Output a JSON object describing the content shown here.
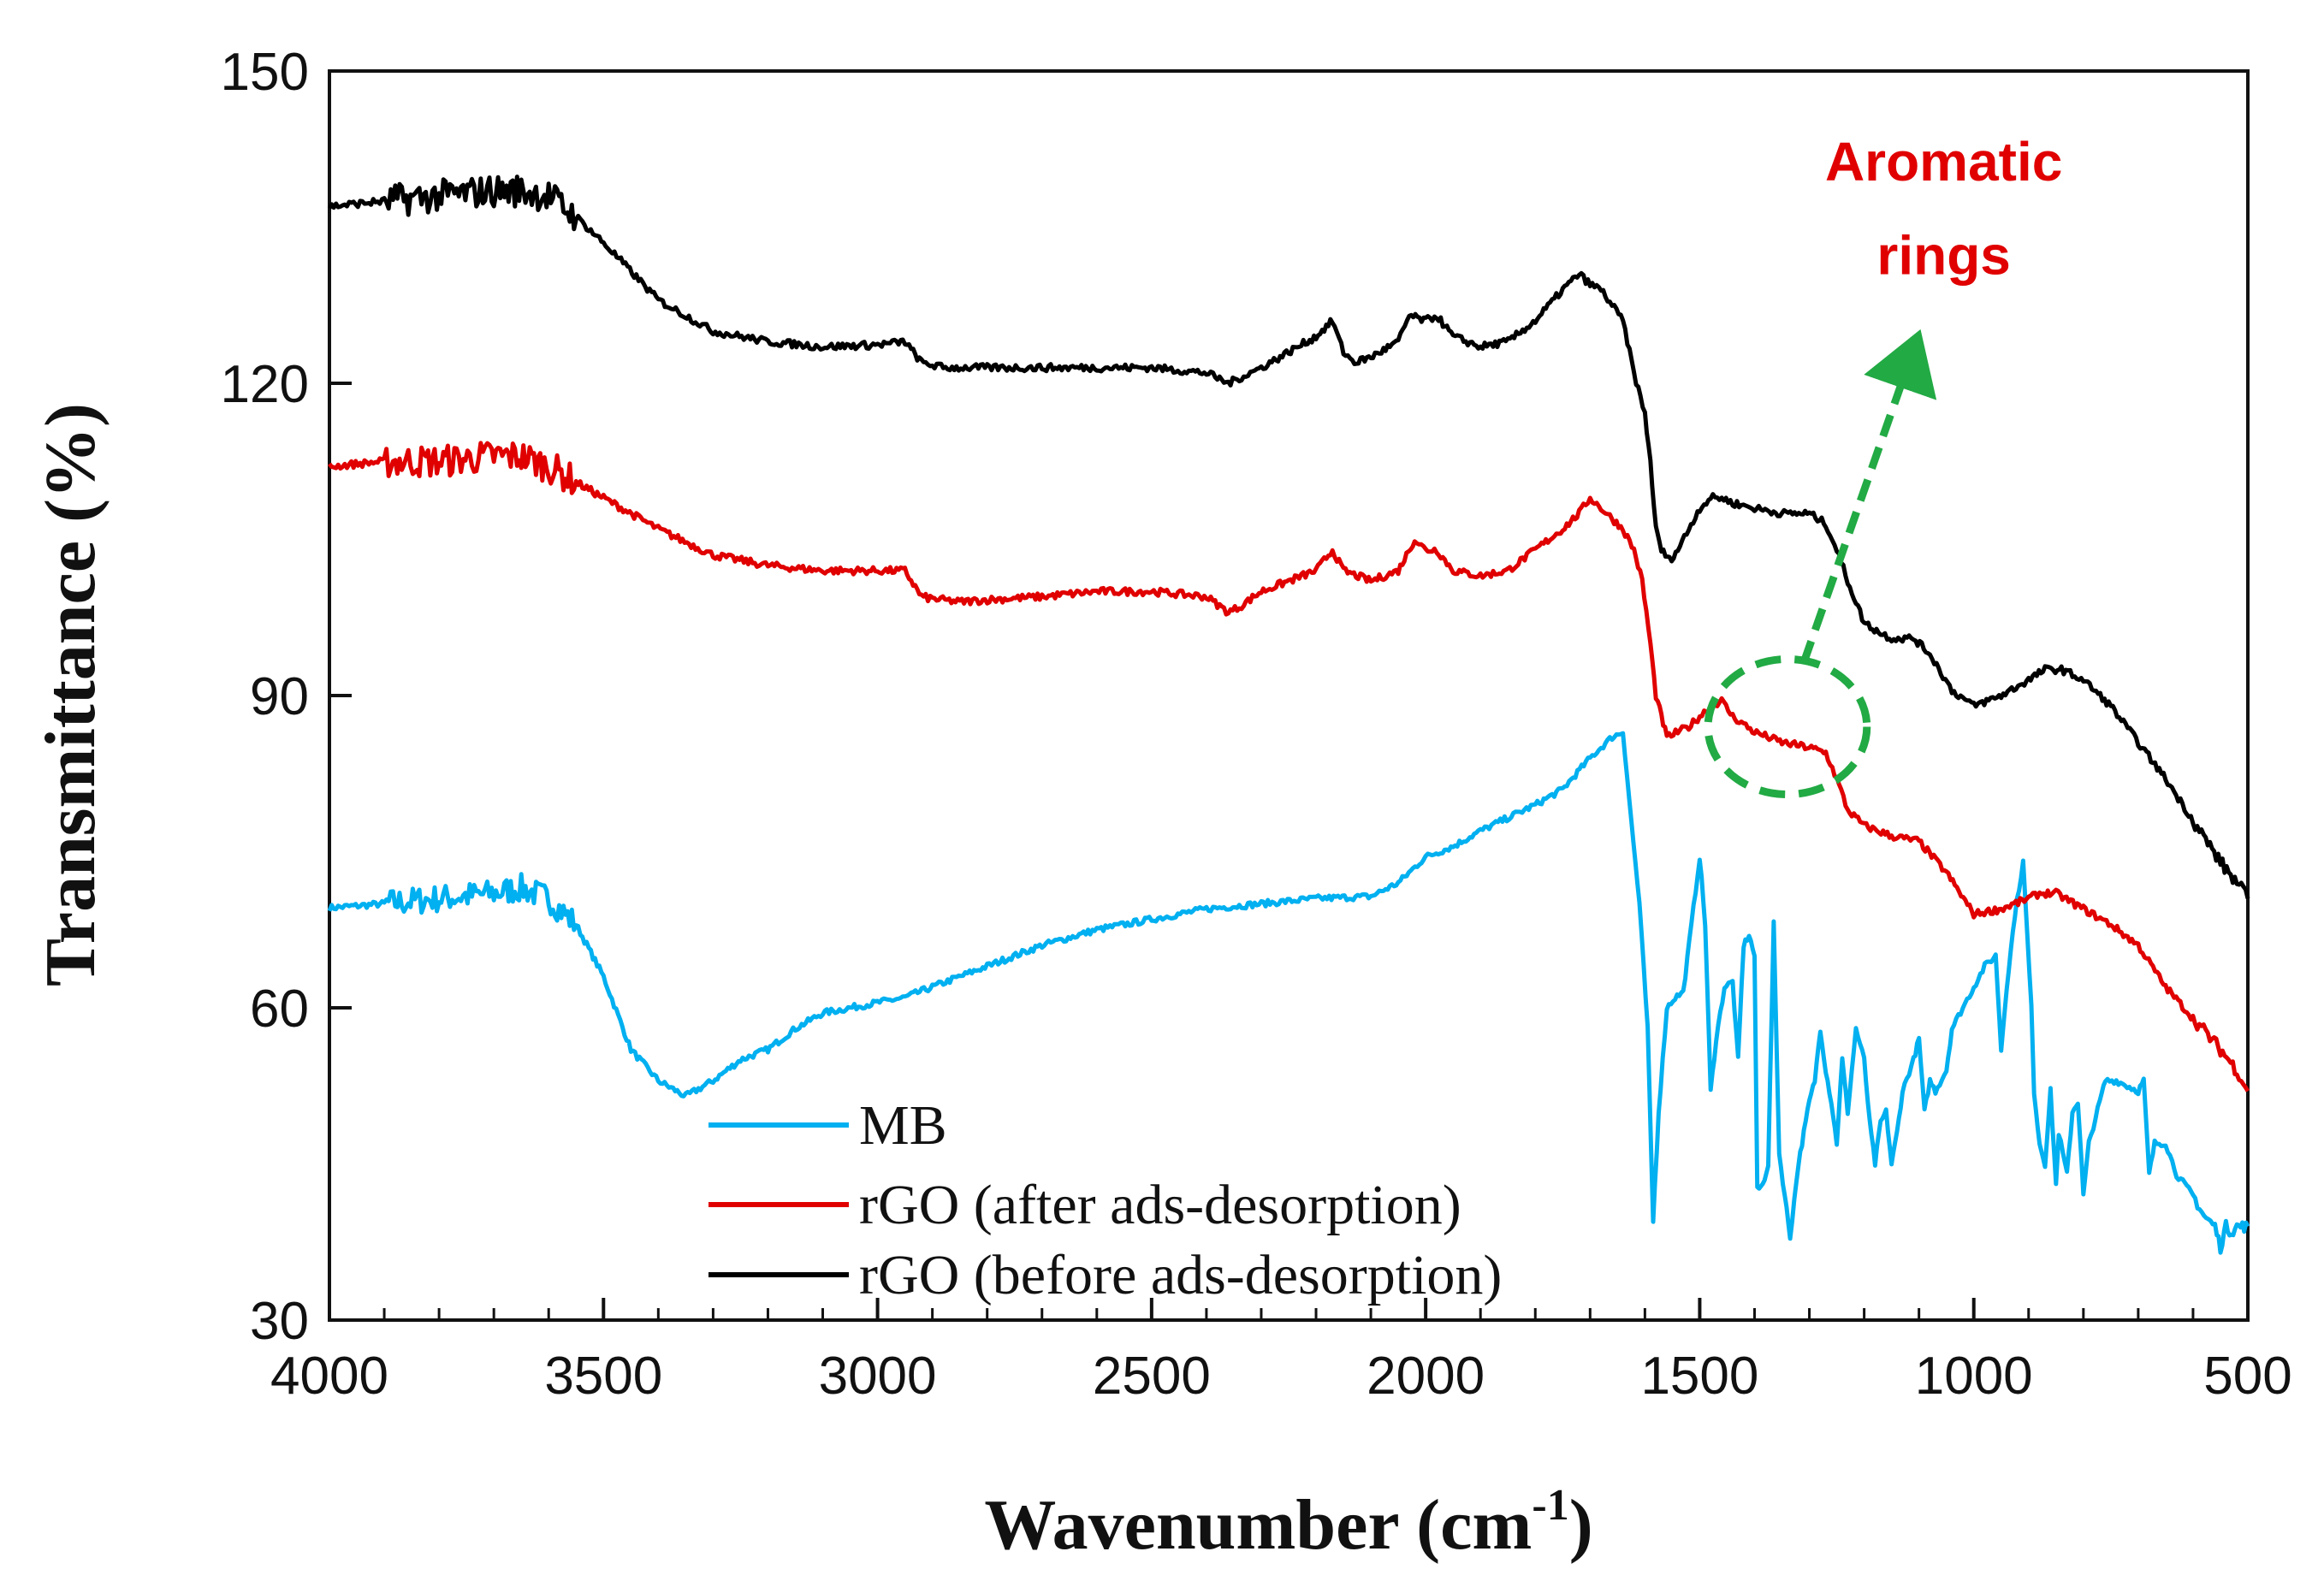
{
  "chart_data": {
    "type": "line",
    "title": "",
    "xlabel": "Wavenumber (cm",
    "xlabel_sup": "-1",
    "xlabel_close": ")",
    "ylabel": "Transmittance (%)",
    "xlim": [
      4000,
      500
    ],
    "ylim": [
      30,
      150
    ],
    "xticks": [
      4000,
      3500,
      3000,
      2500,
      2000,
      1500,
      1000,
      500
    ],
    "yticks": [
      30,
      60,
      90,
      120,
      150
    ],
    "x_minor_step": 100,
    "grid": false,
    "legend_position": "bottom-center",
    "series": [
      {
        "name": "MB",
        "color": "#00B0F0",
        "noise": 0.3,
        "points": [
          [
            4000,
            69.6
          ],
          [
            3900,
            70
          ],
          [
            3800,
            70.5
          ],
          [
            3700,
            71
          ],
          [
            3650,
            71.5
          ],
          [
            3600,
            70.5
          ],
          [
            3550,
            68
          ],
          [
            3500,
            63
          ],
          [
            3450,
            56
          ],
          [
            3400,
            53
          ],
          [
            3350,
            51.5
          ],
          [
            3300,
            53
          ],
          [
            3250,
            55
          ],
          [
            3200,
            56
          ],
          [
            3150,
            58
          ],
          [
            3100,
            59.5
          ],
          [
            3050,
            60
          ],
          [
            3000,
            60.5
          ],
          [
            2950,
            61
          ],
          [
            2900,
            62
          ],
          [
            2800,
            64
          ],
          [
            2700,
            66
          ],
          [
            2600,
            67.5
          ],
          [
            2500,
            68.5
          ],
          [
            2400,
            69.5
          ],
          [
            2300,
            70
          ],
          [
            2200,
            70.5
          ],
          [
            2100,
            70.7
          ],
          [
            2050,
            72
          ],
          [
            2000,
            74.5
          ],
          [
            1950,
            75.5
          ],
          [
            1900,
            77
          ],
          [
            1800,
            79.5
          ],
          [
            1750,
            81
          ],
          [
            1700,
            84
          ],
          [
            1660,
            86
          ],
          [
            1640,
            86.5
          ],
          [
            1625,
            78
          ],
          [
            1610,
            70
          ],
          [
            1595,
            58
          ],
          [
            1585,
            39.5
          ],
          [
            1575,
            50
          ],
          [
            1560,
            60
          ],
          [
            1545,
            61
          ],
          [
            1530,
            61.5
          ],
          [
            1515,
            68
          ],
          [
            1500,
            74.5
          ],
          [
            1490,
            68
          ],
          [
            1480,
            52
          ],
          [
            1470,
            57
          ],
          [
            1455,
            62
          ],
          [
            1440,
            62.5
          ],
          [
            1430,
            55
          ],
          [
            1420,
            66
          ],
          [
            1410,
            67
          ],
          [
            1400,
            65
          ],
          [
            1395,
            42.5
          ],
          [
            1385,
            43
          ],
          [
            1375,
            45
          ],
          [
            1365,
            68
          ],
          [
            1355,
            46
          ],
          [
            1345,
            42
          ],
          [
            1335,
            38
          ],
          [
            1320,
            45
          ],
          [
            1310,
            48
          ],
          [
            1300,
            51
          ],
          [
            1290,
            53
          ],
          [
            1280,
            58
          ],
          [
            1270,
            54
          ],
          [
            1260,
            51
          ],
          [
            1250,
            47
          ],
          [
            1240,
            55
          ],
          [
            1230,
            50
          ],
          [
            1215,
            58
          ],
          [
            1200,
            55
          ],
          [
            1190,
            49
          ],
          [
            1180,
            45
          ],
          [
            1170,
            49
          ],
          [
            1160,
            50
          ],
          [
            1150,
            45
          ],
          [
            1140,
            48
          ],
          [
            1130,
            52
          ],
          [
            1110,
            55
          ],
          [
            1100,
            57
          ],
          [
            1090,
            50
          ],
          [
            1080,
            53
          ],
          [
            1070,
            52
          ],
          [
            1050,
            54
          ],
          [
            1040,
            58
          ],
          [
            1000,
            62
          ],
          [
            980,
            64
          ],
          [
            960,
            65
          ],
          [
            950,
            56
          ],
          [
            940,
            62
          ],
          [
            925,
            69
          ],
          [
            910,
            74
          ],
          [
            895,
            60
          ],
          [
            890,
            52
          ],
          [
            880,
            47
          ],
          [
            870,
            45
          ],
          [
            860,
            52
          ],
          [
            850,
            43
          ],
          [
            845,
            48
          ],
          [
            830,
            44
          ],
          [
            820,
            50
          ],
          [
            810,
            51
          ],
          [
            800,
            42
          ],
          [
            790,
            47
          ],
          [
            770,
            51
          ],
          [
            760,
            53
          ],
          [
            740,
            53
          ],
          [
            700,
            52
          ],
          [
            690,
            53
          ],
          [
            680,
            44
          ],
          [
            670,
            47
          ],
          [
            650,
            47
          ],
          [
            630,
            44
          ],
          [
            600,
            42
          ],
          [
            580,
            40
          ],
          [
            560,
            39
          ],
          [
            550,
            37
          ],
          [
            540,
            39
          ],
          [
            530,
            38.5
          ],
          [
            520,
            39
          ],
          [
            510,
            39
          ],
          [
            500,
            39
          ]
        ]
      },
      {
        "name": "rGO (after ads-desorption)",
        "color": "#E00000",
        "noise": 0.35,
        "points": [
          [
            4000,
            112
          ],
          [
            3900,
            112.5
          ],
          [
            3800,
            112.5
          ],
          [
            3700,
            113
          ],
          [
            3650,
            113
          ],
          [
            3600,
            112
          ],
          [
            3550,
            110.5
          ],
          [
            3500,
            109
          ],
          [
            3400,
            106
          ],
          [
            3300,
            103.5
          ],
          [
            3200,
            102.5
          ],
          [
            3100,
            102
          ],
          [
            3000,
            102
          ],
          [
            2950,
            102
          ],
          [
            2920,
            99.5
          ],
          [
            2900,
            99.3
          ],
          [
            2850,
            99
          ],
          [
            2800,
            99.2
          ],
          [
            2700,
            99.5
          ],
          [
            2600,
            100
          ],
          [
            2500,
            100
          ],
          [
            2400,
            99.5
          ],
          [
            2360,
            98
          ],
          [
            2340,
            98.5
          ],
          [
            2300,
            100
          ],
          [
            2250,
            101
          ],
          [
            2200,
            102
          ],
          [
            2170,
            104
          ],
          [
            2150,
            102
          ],
          [
            2100,
            101
          ],
          [
            2050,
            102
          ],
          [
            2020,
            105
          ],
          [
            2000,
            104
          ],
          [
            1980,
            104
          ],
          [
            1950,
            102
          ],
          [
            1900,
            101.5
          ],
          [
            1850,
            102
          ],
          [
            1800,
            104
          ],
          [
            1750,
            106
          ],
          [
            1720,
            107.5
          ],
          [
            1700,
            109
          ],
          [
            1680,
            108
          ],
          [
            1660,
            107
          ],
          [
            1640,
            106
          ],
          [
            1620,
            104
          ],
          [
            1605,
            101
          ],
          [
            1590,
            95
          ],
          [
            1580,
            90
          ],
          [
            1570,
            88
          ],
          [
            1560,
            86
          ],
          [
            1540,
            86.5
          ],
          [
            1520,
            87
          ],
          [
            1500,
            88
          ],
          [
            1480,
            89
          ],
          [
            1460,
            89.5
          ],
          [
            1440,
            88
          ],
          [
            1400,
            86.5
          ],
          [
            1350,
            85.5
          ],
          [
            1300,
            85
          ],
          [
            1270,
            84.5
          ],
          [
            1250,
            82
          ],
          [
            1230,
            79
          ],
          [
            1200,
            77.5
          ],
          [
            1150,
            76.5
          ],
          [
            1100,
            76
          ],
          [
            1050,
            73
          ],
          [
            1000,
            69
          ],
          [
            950,
            69.5
          ],
          [
            900,
            70.5
          ],
          [
            880,
            71
          ],
          [
            850,
            71
          ],
          [
            800,
            69.5
          ],
          [
            750,
            68
          ],
          [
            700,
            66
          ],
          [
            650,
            62
          ],
          [
            600,
            59
          ],
          [
            550,
            56
          ],
          [
            520,
            54
          ],
          [
            500,
            52
          ]
        ]
      },
      {
        "name": "rGO (before ads-desorption)",
        "color": "#000000",
        "noise": 0.35,
        "points": [
          [
            4000,
            137
          ],
          [
            3900,
            137.5
          ],
          [
            3800,
            138
          ],
          [
            3700,
            138.5
          ],
          [
            3650,
            138.5
          ],
          [
            3600,
            138
          ],
          [
            3550,
            136
          ],
          [
            3500,
            133.5
          ],
          [
            3400,
            128
          ],
          [
            3300,
            125
          ],
          [
            3200,
            124
          ],
          [
            3100,
            123.5
          ],
          [
            3000,
            123.7
          ],
          [
            2950,
            124
          ],
          [
            2920,
            122
          ],
          [
            2880,
            121.5
          ],
          [
            2800,
            121.5
          ],
          [
            2700,
            121.5
          ],
          [
            2600,
            121.5
          ],
          [
            2500,
            121.5
          ],
          [
            2400,
            121
          ],
          [
            2360,
            120
          ],
          [
            2340,
            120.5
          ],
          [
            2300,
            121.5
          ],
          [
            2250,
            123
          ],
          [
            2200,
            124.5
          ],
          [
            2170,
            126
          ],
          [
            2150,
            123
          ],
          [
            2130,
            122
          ],
          [
            2100,
            122.5
          ],
          [
            2050,
            124
          ],
          [
            2030,
            126.5
          ],
          [
            2000,
            126
          ],
          [
            1980,
            126.5
          ],
          [
            1950,
            124.5
          ],
          [
            1900,
            123.5
          ],
          [
            1850,
            124
          ],
          [
            1800,
            126
          ],
          [
            1750,
            129
          ],
          [
            1720,
            130.5
          ],
          [
            1700,
            129.5
          ],
          [
            1680,
            129
          ],
          [
            1660,
            127.5
          ],
          [
            1640,
            126
          ],
          [
            1620,
            121
          ],
          [
            1600,
            117
          ],
          [
            1590,
            112.5
          ],
          [
            1580,
            106
          ],
          [
            1570,
            104
          ],
          [
            1555,
            103
          ],
          [
            1540,
            104
          ],
          [
            1520,
            106
          ],
          [
            1500,
            108
          ],
          [
            1480,
            109
          ],
          [
            1460,
            109
          ],
          [
            1440,
            108.5
          ],
          [
            1400,
            108
          ],
          [
            1350,
            107.5
          ],
          [
            1300,
            107.5
          ],
          [
            1270,
            106.5
          ],
          [
            1250,
            104
          ],
          [
            1230,
            101
          ],
          [
            1200,
            97
          ],
          [
            1170,
            96
          ],
          [
            1150,
            95.5
          ],
          [
            1110,
            95.5
          ],
          [
            1080,
            94
          ],
          [
            1040,
            90.5
          ],
          [
            1000,
            89
          ],
          [
            950,
            90
          ],
          [
            900,
            91.5
          ],
          [
            870,
            92.5
          ],
          [
            840,
            92.5
          ],
          [
            800,
            91.5
          ],
          [
            750,
            89
          ],
          [
            700,
            85.5
          ],
          [
            650,
            82
          ],
          [
            600,
            78
          ],
          [
            550,
            74
          ],
          [
            520,
            72
          ],
          [
            500,
            70.5
          ]
        ]
      }
    ],
    "annotation": {
      "line1": "Aromatic",
      "line2": "rings",
      "text_color": "#E00000",
      "marker_color": "#22AA44",
      "ellipse_center": [
        1340,
        87
      ],
      "ellipse_radius": [
        145,
        6.5
      ],
      "arrow_from": [
        1310,
        93.2
      ],
      "arrow_to": [
        1125,
        121
      ]
    }
  }
}
